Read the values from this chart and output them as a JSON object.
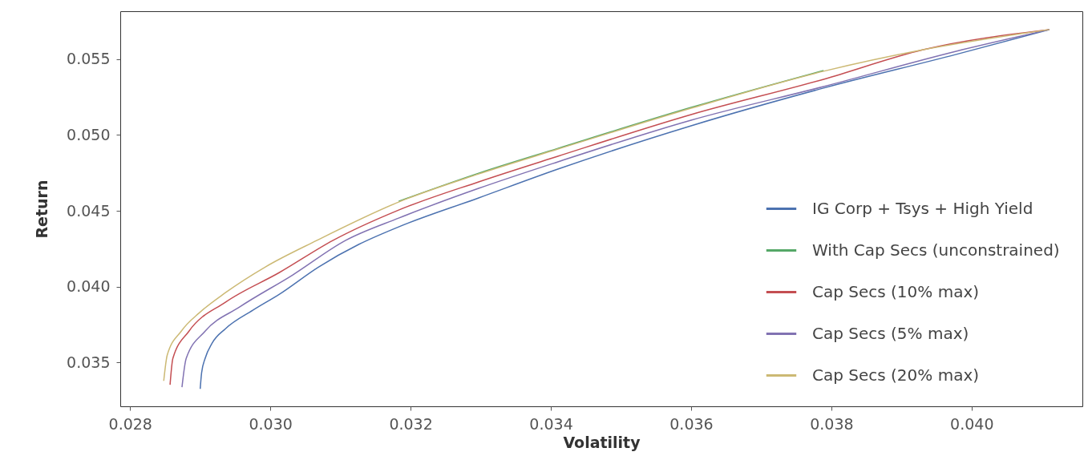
{
  "chart_data": {
    "type": "line",
    "xlabel": "Volatility",
    "ylabel": "Return",
    "xlim": [
      0.02786,
      0.04158
    ],
    "ylim": [
      0.0321,
      0.05817
    ],
    "xticks": [
      0.028,
      {
        "value": 0.03,
        "label": "0.030"
      },
      0.032,
      0.034,
      0.036,
      0.038,
      {
        "value": 0.04,
        "label": "0.040"
      }
    ],
    "yticks": [
      0.035,
      {
        "value": 0.04,
        "label": "0.040"
      },
      0.045,
      {
        "value": 0.05,
        "label": "0.050"
      },
      0.055
    ],
    "legend": "bottom right",
    "series": [
      {
        "name": "IG Corp + Tsys + High Yield",
        "color": "#4c72b0",
        "x": [
          0.029,
          0.02902,
          0.02907,
          0.02917,
          0.02936,
          0.02975,
          0.03013,
          0.03069,
          0.03126,
          0.03183,
          0.03297,
          0.0341,
          0.036,
          0.03789,
          0.03978,
          0.04111
        ],
        "values": [
          0.03325,
          0.03431,
          0.03526,
          0.03627,
          0.03722,
          0.03844,
          0.0395,
          0.0413,
          0.04278,
          0.04394,
          0.04585,
          0.04775,
          0.05061,
          0.0531,
          0.05532,
          0.05696
        ]
      },
      {
        "name": "With Cap Secs (unconstrained)",
        "color": "#55a868",
        "x": [
          0.03183,
          0.03297,
          0.0341,
          0.036,
          0.03789
        ],
        "values": [
          0.04563,
          0.04748,
          0.04912,
          0.05182,
          0.05426
        ]
      },
      {
        "name": "Cap Secs (10% max)",
        "color": "#c44e52",
        "x": [
          0.02857,
          0.02861,
          0.02884,
          0.02936,
          0.03013,
          0.03089,
          0.03183,
          0.03297,
          0.0341,
          0.036,
          0.03789,
          0.03931,
          0.04111
        ],
        "values": [
          0.03352,
          0.03526,
          0.03706,
          0.03897,
          0.04093,
          0.04304,
          0.04505,
          0.04691,
          0.0486,
          0.05135,
          0.05368,
          0.05563,
          0.05696
        ]
      },
      {
        "name": "Cap Secs (5% max)",
        "color": "#8172b2",
        "x": [
          0.02874,
          0.0288,
          0.02907,
          0.02956,
          0.03032,
          0.03107,
          0.03183,
          0.03297,
          0.0341,
          0.036,
          0.03789,
          0.03978,
          0.04111
        ],
        "values": [
          0.03336,
          0.03526,
          0.03706,
          0.03865,
          0.04077,
          0.04304,
          0.04452,
          0.04648,
          0.04823,
          0.05098,
          0.0532,
          0.05553,
          0.05696
        ]
      },
      {
        "name": "Cap Secs (20% max)",
        "color": "#ccb974",
        "x": [
          0.02848,
          0.02853,
          0.02873,
          0.02899,
          0.02936,
          0.02993,
          0.03066,
          0.03183,
          0.03297,
          0.0341,
          0.036,
          0.03789,
          0.03931,
          0.04111
        ],
        "values": [
          0.03378,
          0.03548,
          0.03706,
          0.03828,
          0.0396,
          0.0413,
          0.04304,
          0.04558,
          0.04743,
          0.04907,
          0.05177,
          0.05421,
          0.05563,
          0.05696
        ]
      }
    ]
  }
}
